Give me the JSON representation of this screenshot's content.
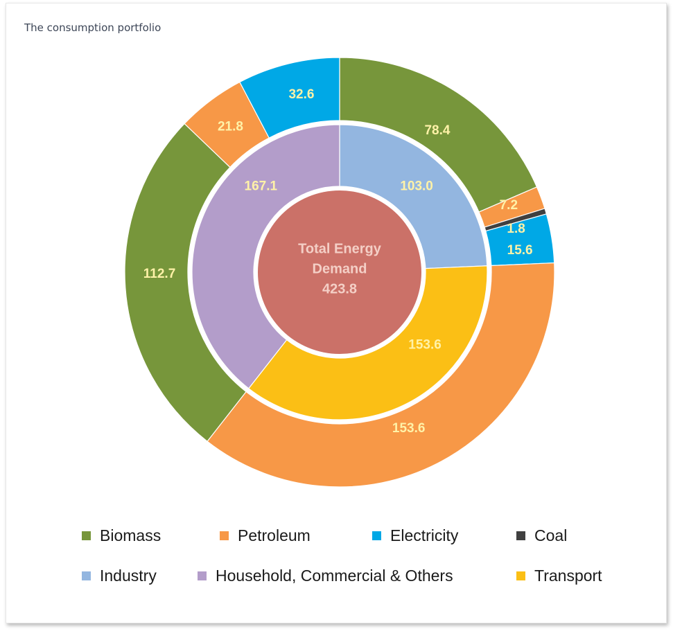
{
  "page": {
    "title": "The consumption portfolio"
  },
  "colors": {
    "biomass": "#77963b",
    "petroleum": "#f79847",
    "electricity": "#00a8e6",
    "coal": "#404040",
    "industry": "#93b6e0",
    "household": "#b39dca",
    "transport": "#fbbf15",
    "center": "#cb7168",
    "label_text": "#fff2a8",
    "center_text": "#f4cfc6"
  },
  "chart_data": {
    "type": "pie",
    "subtype": "sunburst",
    "center": {
      "lines": [
        "Total Energy",
        "Demand",
        "423.8"
      ],
      "value": 423.8
    },
    "inner_ring": [
      {
        "name": "Industry",
        "value": 103.0,
        "label": "103.0",
        "color_key": "industry"
      },
      {
        "name": "Transport",
        "value": 153.6,
        "label": "153.6",
        "color_key": "transport"
      },
      {
        "name": "Household, Commercial & Others",
        "value": 167.1,
        "label": "167.1",
        "color_key": "household"
      }
    ],
    "outer_ring": [
      {
        "parent": "Industry",
        "fuel": "Biomass",
        "value": 78.4,
        "label": "78.4",
        "color_key": "biomass"
      },
      {
        "parent": "Industry",
        "fuel": "Petroleum",
        "value": 7.2,
        "label": "7.2",
        "color_key": "petroleum"
      },
      {
        "parent": "Industry",
        "fuel": "Coal",
        "value": 1.8,
        "label": "1.8",
        "color_key": "coal"
      },
      {
        "parent": "Industry",
        "fuel": "Electricity",
        "value": 15.6,
        "label": "15.6",
        "color_key": "electricity"
      },
      {
        "parent": "Transport",
        "fuel": "Petroleum",
        "value": 153.6,
        "label": "153.6",
        "color_key": "petroleum"
      },
      {
        "parent": "Household, Commercial & Others",
        "fuel": "Biomass",
        "value": 112.7,
        "label": "112.7",
        "color_key": "biomass"
      },
      {
        "parent": "Household, Commercial & Others",
        "fuel": "Petroleum",
        "value": 21.8,
        "label": "21.8",
        "color_key": "petroleum"
      },
      {
        "parent": "Household, Commercial & Others",
        "fuel": "Electricity",
        "value": 32.6,
        "label": "32.6",
        "color_key": "electricity"
      }
    ],
    "legend_placement": "bottom",
    "legend": {
      "row1": [
        {
          "label": "Biomass",
          "color_key": "biomass"
        },
        {
          "label": "Petroleum",
          "color_key": "petroleum"
        },
        {
          "label": "Electricity",
          "color_key": "electricity"
        },
        {
          "label": "Coal",
          "color_key": "coal"
        }
      ],
      "row2": [
        {
          "label": "Industry",
          "color_key": "industry"
        },
        {
          "label": "Household, Commercial & Others",
          "color_key": "household"
        },
        {
          "label": "Transport",
          "color_key": "transport"
        }
      ]
    }
  }
}
